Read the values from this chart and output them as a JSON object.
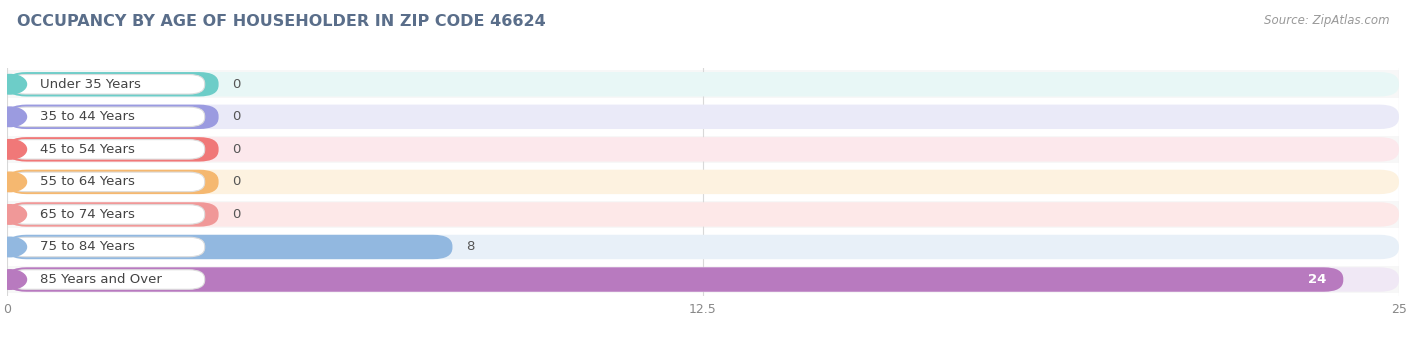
{
  "title": "OCCUPANCY BY AGE OF HOUSEHOLDER IN ZIP CODE 46624",
  "source": "Source: ZipAtlas.com",
  "categories": [
    "Under 35 Years",
    "35 to 44 Years",
    "45 to 54 Years",
    "55 to 64 Years",
    "65 to 74 Years",
    "75 to 84 Years",
    "85 Years and Over"
  ],
  "values": [
    0,
    0,
    0,
    0,
    0,
    8,
    24
  ],
  "bar_colors": [
    "#6dcdc8",
    "#9b9be0",
    "#f07878",
    "#f5b870",
    "#f09898",
    "#92b8e0",
    "#b87abf"
  ],
  "bar_bg_colors": [
    "#e8f7f6",
    "#eaeaf8",
    "#fce8ec",
    "#fdf2e0",
    "#fde8e8",
    "#e8f0f8",
    "#f0e8f5"
  ],
  "row_bg_color": "#f0f0f0",
  "label_bg": "#ffffff",
  "xlim": [
    0,
    25
  ],
  "xticks": [
    0,
    12.5,
    25
  ],
  "title_fontsize": 11.5,
  "source_fontsize": 8.5,
  "label_fontsize": 9.5,
  "value_fontsize": 9.5,
  "background_color": "#ffffff",
  "title_color": "#5a6e8a",
  "grid_color": "#d8d8d8",
  "value_color_dark": "#555555",
  "value_color_light": "#ffffff"
}
